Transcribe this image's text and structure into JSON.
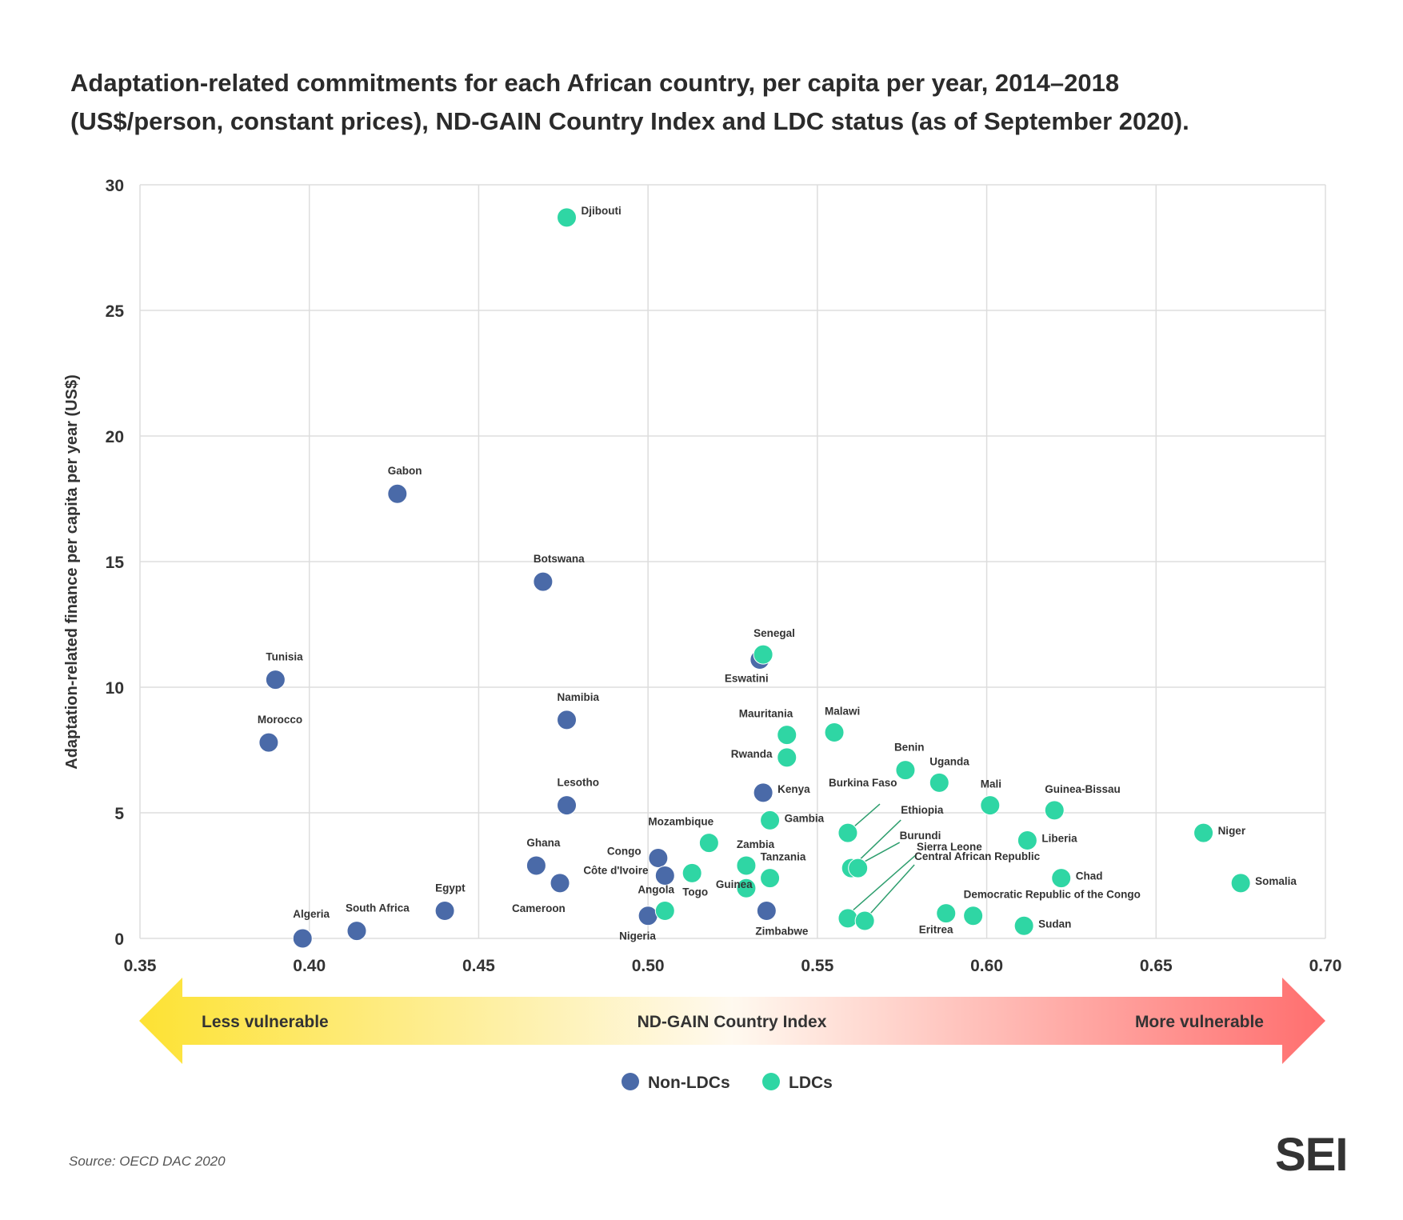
{
  "title_lines": [
    "Adaptation-related commitments for each African country, per capita per year, 2014–2018",
    "(US$/person, constant prices), ND-GAIN Country Index and LDC status (as of September 2020)."
  ],
  "source": "Source: OECD DAC 2020",
  "logo": "SEI",
  "colors": {
    "non_ldc": "#4a6aa8",
    "ldc": "#2fd6a4",
    "grid": "#dddddd",
    "leader": "#2e9e6e",
    "arrow_left": "#fde233",
    "arrow_right": "#ff6e6e"
  },
  "arrow": {
    "left_label": "Less vulnerable",
    "center_label": "ND-GAIN Country Index",
    "right_label": "More vulnerable"
  },
  "chart_data": {
    "type": "scatter",
    "ylabel": "Adaptation-related finance per capita per year (US$)",
    "xlim": [
      0.35,
      0.7
    ],
    "ylim": [
      0,
      30
    ],
    "x_ticks": [
      "0.35",
      "0.40",
      "0.45",
      "0.50",
      "0.55",
      "0.60",
      "0.65",
      "0.70"
    ],
    "y_ticks": [
      "0",
      "5",
      "10",
      "15",
      "20",
      "25",
      "30"
    ],
    "grid": true,
    "legend": "bottom-center",
    "series": [
      {
        "name": "Non-LDCs",
        "color": "#4a6aa8",
        "points": [
          {
            "label": "Algeria",
            "x": 0.398,
            "y": 0.0
          },
          {
            "label": "South Africa",
            "x": 0.414,
            "y": 0.3
          },
          {
            "label": "Egypt",
            "x": 0.44,
            "y": 1.1
          },
          {
            "label": "Morocco",
            "x": 0.388,
            "y": 7.8
          },
          {
            "label": "Tunisia",
            "x": 0.39,
            "y": 10.3
          },
          {
            "label": "Gabon",
            "x": 0.426,
            "y": 17.7
          },
          {
            "label": "Botswana",
            "x": 0.469,
            "y": 14.2
          },
          {
            "label": "Namibia",
            "x": 0.476,
            "y": 8.7
          },
          {
            "label": "Lesotho",
            "x": 0.476,
            "y": 5.3
          },
          {
            "label": "Ghana",
            "x": 0.467,
            "y": 2.9
          },
          {
            "label": "Cameroon",
            "x": 0.474,
            "y": 2.2
          },
          {
            "label": "Congo",
            "x": 0.503,
            "y": 3.2
          },
          {
            "label": "Côte d'Ivoire",
            "x": 0.505,
            "y": 2.5
          },
          {
            "label": "Nigeria",
            "x": 0.5,
            "y": 0.9
          },
          {
            "label": "Eswatini",
            "x": 0.533,
            "y": 11.1
          },
          {
            "label": "Kenya",
            "x": 0.534,
            "y": 5.8
          },
          {
            "label": "Zimbabwe",
            "x": 0.535,
            "y": 1.1
          }
        ]
      },
      {
        "name": "LDCs",
        "color": "#2fd6a4",
        "points": [
          {
            "label": "Djibouti",
            "x": 0.476,
            "y": 28.7
          },
          {
            "label": "Senegal",
            "x": 0.534,
            "y": 11.3
          },
          {
            "label": "Mauritania",
            "x": 0.541,
            "y": 8.1
          },
          {
            "label": "Rwanda",
            "x": 0.541,
            "y": 7.2
          },
          {
            "label": "Malawi",
            "x": 0.555,
            "y": 8.2
          },
          {
            "label": "Gambia",
            "x": 0.536,
            "y": 4.7
          },
          {
            "label": "Mozambique",
            "x": 0.518,
            "y": 3.8
          },
          {
            "label": "Zambia",
            "x": 0.529,
            "y": 2.9
          },
          {
            "label": "Togo",
            "x": 0.513,
            "y": 2.6
          },
          {
            "label": "Angola",
            "x": 0.505,
            "y": 1.1
          },
          {
            "label": "Guinea",
            "x": 0.529,
            "y": 2.0
          },
          {
            "label": "Tanzania",
            "x": 0.536,
            "y": 2.4
          },
          {
            "label": "Burkina Faso",
            "x": 0.559,
            "y": 4.2
          },
          {
            "label": "Ethiopia",
            "x": 0.56,
            "y": 2.8
          },
          {
            "label": "Burundi",
            "x": 0.562,
            "y": 2.8
          },
          {
            "label": "Sierra Leone",
            "x": 0.559,
            "y": 0.8
          },
          {
            "label": "Central African Republic",
            "x": 0.564,
            "y": 0.7
          },
          {
            "label": "Benin",
            "x": 0.576,
            "y": 6.7
          },
          {
            "label": "Uganda",
            "x": 0.586,
            "y": 6.2
          },
          {
            "label": "Eritrea",
            "x": 0.588,
            "y": 1.0
          },
          {
            "label": "Democratic Republic of the Congo",
            "x": 0.596,
            "y": 0.9
          },
          {
            "label": "Mali",
            "x": 0.601,
            "y": 5.3
          },
          {
            "label": "Liberia",
            "x": 0.612,
            "y": 3.9
          },
          {
            "label": "Sudan",
            "x": 0.611,
            "y": 0.5
          },
          {
            "label": "Guinea-Bissau",
            "x": 0.62,
            "y": 5.1
          },
          {
            "label": "Chad",
            "x": 0.622,
            "y": 2.4
          },
          {
            "label": "Niger",
            "x": 0.664,
            "y": 4.2
          },
          {
            "label": "Somalia",
            "x": 0.675,
            "y": 2.2
          }
        ]
      }
    ]
  }
}
